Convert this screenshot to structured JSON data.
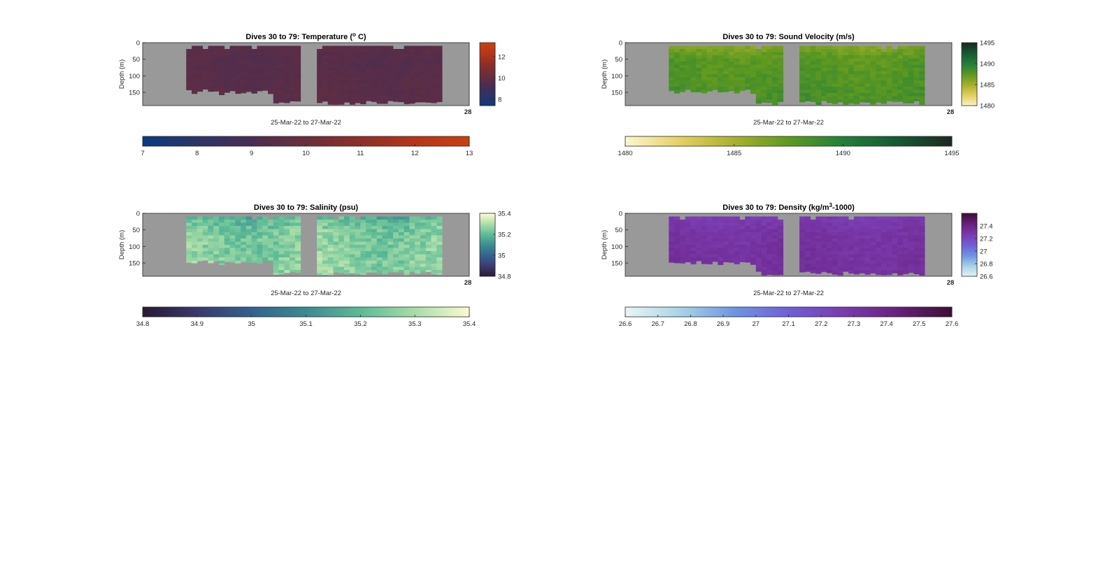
{
  "chart_data": [
    {
      "type": "heatmap",
      "id": "temperature",
      "title_pre": "Dives 30 to 79: Temperature (",
      "title_sup": "o",
      "title_post": " C)",
      "xlabel": "25-Mar-22 to 27-Mar-22",
      "ylabel": "Depth (m)",
      "x_tick_label": "28",
      "ylim": [
        0,
        190
      ],
      "yticks": [
        0,
        50,
        100,
        150
      ],
      "dives": [
        30,
        79
      ],
      "gaps": [
        [
          0,
          3
        ],
        [
          11.5,
          12.5
        ],
        [
          22,
          24
        ]
      ],
      "colormap": [
        "#0c3a80",
        "#2c3468",
        "#4a2d52",
        "#6a2e3c",
        "#8c2f28",
        "#b4361a",
        "#c84010"
      ],
      "clim": [
        7,
        13
      ],
      "field": {
        "base": 9.3,
        "surface_delta": 0.2,
        "depth_delta": 0.25,
        "noise": 0.15,
        "seed": 3
      },
      "colorbar_right": {
        "ticks": [
          8,
          10,
          12
        ],
        "range": [
          7.4,
          13.3
        ]
      },
      "colorbar_bottom": {
        "ticks": [
          7,
          8,
          9,
          10,
          11,
          12,
          13
        ],
        "range": [
          7,
          13
        ]
      }
    },
    {
      "type": "heatmap",
      "id": "sound-velocity",
      "title_pre": "Dives 30 to 79: Sound Velocity (m/s)",
      "title_sup": "",
      "title_post": "",
      "xlabel": "25-Mar-22 to 27-Mar-22",
      "ylabel": "Depth (m)",
      "x_tick_label": "28",
      "ylim": [
        0,
        190
      ],
      "yticks": [
        0,
        50,
        100,
        150
      ],
      "dives": [
        30,
        79
      ],
      "gaps": [
        [
          0,
          3
        ],
        [
          11.5,
          12.5
        ],
        [
          22,
          24
        ]
      ],
      "colormap": [
        "#fbf6cc",
        "#e6cf62",
        "#a8b02c",
        "#5e9920",
        "#23803a",
        "#165a32",
        "#1c2a22"
      ],
      "clim": [
        1480,
        1495
      ],
      "field": {
        "base": 1487.6,
        "surface_delta": -1.4,
        "depth_delta": 0.9,
        "noise": 0.6,
        "seed": 7
      },
      "colorbar_right": {
        "ticks": [
          1480,
          1485,
          1490,
          1495
        ],
        "range": [
          1480,
          1495
        ]
      },
      "colorbar_bottom": {
        "ticks": [
          1480,
          1485,
          1490,
          1495
        ],
        "range": [
          1480,
          1495
        ]
      }
    },
    {
      "type": "heatmap",
      "id": "salinity",
      "title_pre": "Dives 30 to 79: Salinity (psu)",
      "title_sup": "",
      "title_post": "",
      "xlabel": "25-Mar-22 to 27-Mar-22",
      "ylabel": "Depth (m)",
      "x_tick_label": "28",
      "ylim": [
        0,
        190
      ],
      "yticks": [
        0,
        50,
        100,
        150
      ],
      "dives": [
        30,
        79
      ],
      "gaps": [
        [
          0,
          3
        ],
        [
          11.5,
          12.5
        ],
        [
          22,
          24
        ]
      ],
      "colormap": [
        "#2a1a33",
        "#3a3a6e",
        "#33628e",
        "#3c8a92",
        "#5cba96",
        "#a6dca8",
        "#fbfad0"
      ],
      "clim": [
        34.8,
        35.4
      ],
      "field": {
        "base": 35.24,
        "surface_delta": -0.06,
        "depth_delta": 0.03,
        "noise": 0.05,
        "seed": 11
      },
      "colorbar_right": {
        "ticks": [
          34.8,
          35,
          35.2,
          35.4
        ],
        "range": [
          34.8,
          35.4
        ]
      },
      "colorbar_bottom": {
        "ticks": [
          34.8,
          34.9,
          35,
          35.1,
          35.2,
          35.3,
          35.4
        ],
        "range": [
          34.8,
          35.4
        ]
      }
    },
    {
      "type": "heatmap",
      "id": "density",
      "title_pre": "Dives 30 to 79: Density (kg/m",
      "title_sup": "3",
      "title_post": "-1000)",
      "xlabel": "25-Mar-22 to 27-Mar-22",
      "ylabel": "Depth (m)",
      "x_tick_label": "28",
      "ylim": [
        0,
        190
      ],
      "yticks": [
        0,
        50,
        100,
        150
      ],
      "dives": [
        30,
        79
      ],
      "gaps": [
        [
          0,
          3
        ],
        [
          11.5,
          12.5
        ],
        [
          22,
          24
        ]
      ],
      "colormap": [
        "#e8f4f6",
        "#a8d4e6",
        "#6e96e2",
        "#7060d6",
        "#7a3cb0",
        "#6a2080",
        "#3e1036"
      ],
      "clim": [
        26.6,
        27.6
      ],
      "field": {
        "base": 27.3,
        "surface_delta": -0.04,
        "depth_delta": 0.04,
        "noise": 0.03,
        "seed": 5
      },
      "colorbar_right": {
        "ticks": [
          26.6,
          26.8,
          27,
          27.2,
          27.4
        ],
        "range": [
          26.6,
          27.6
        ]
      },
      "colorbar_bottom": {
        "ticks": [
          26.6,
          26.7,
          26.8,
          26.9,
          27,
          27.1,
          27.2,
          27.3,
          27.4,
          27.5,
          27.6
        ],
        "range": [
          26.6,
          27.6
        ]
      }
    }
  ]
}
